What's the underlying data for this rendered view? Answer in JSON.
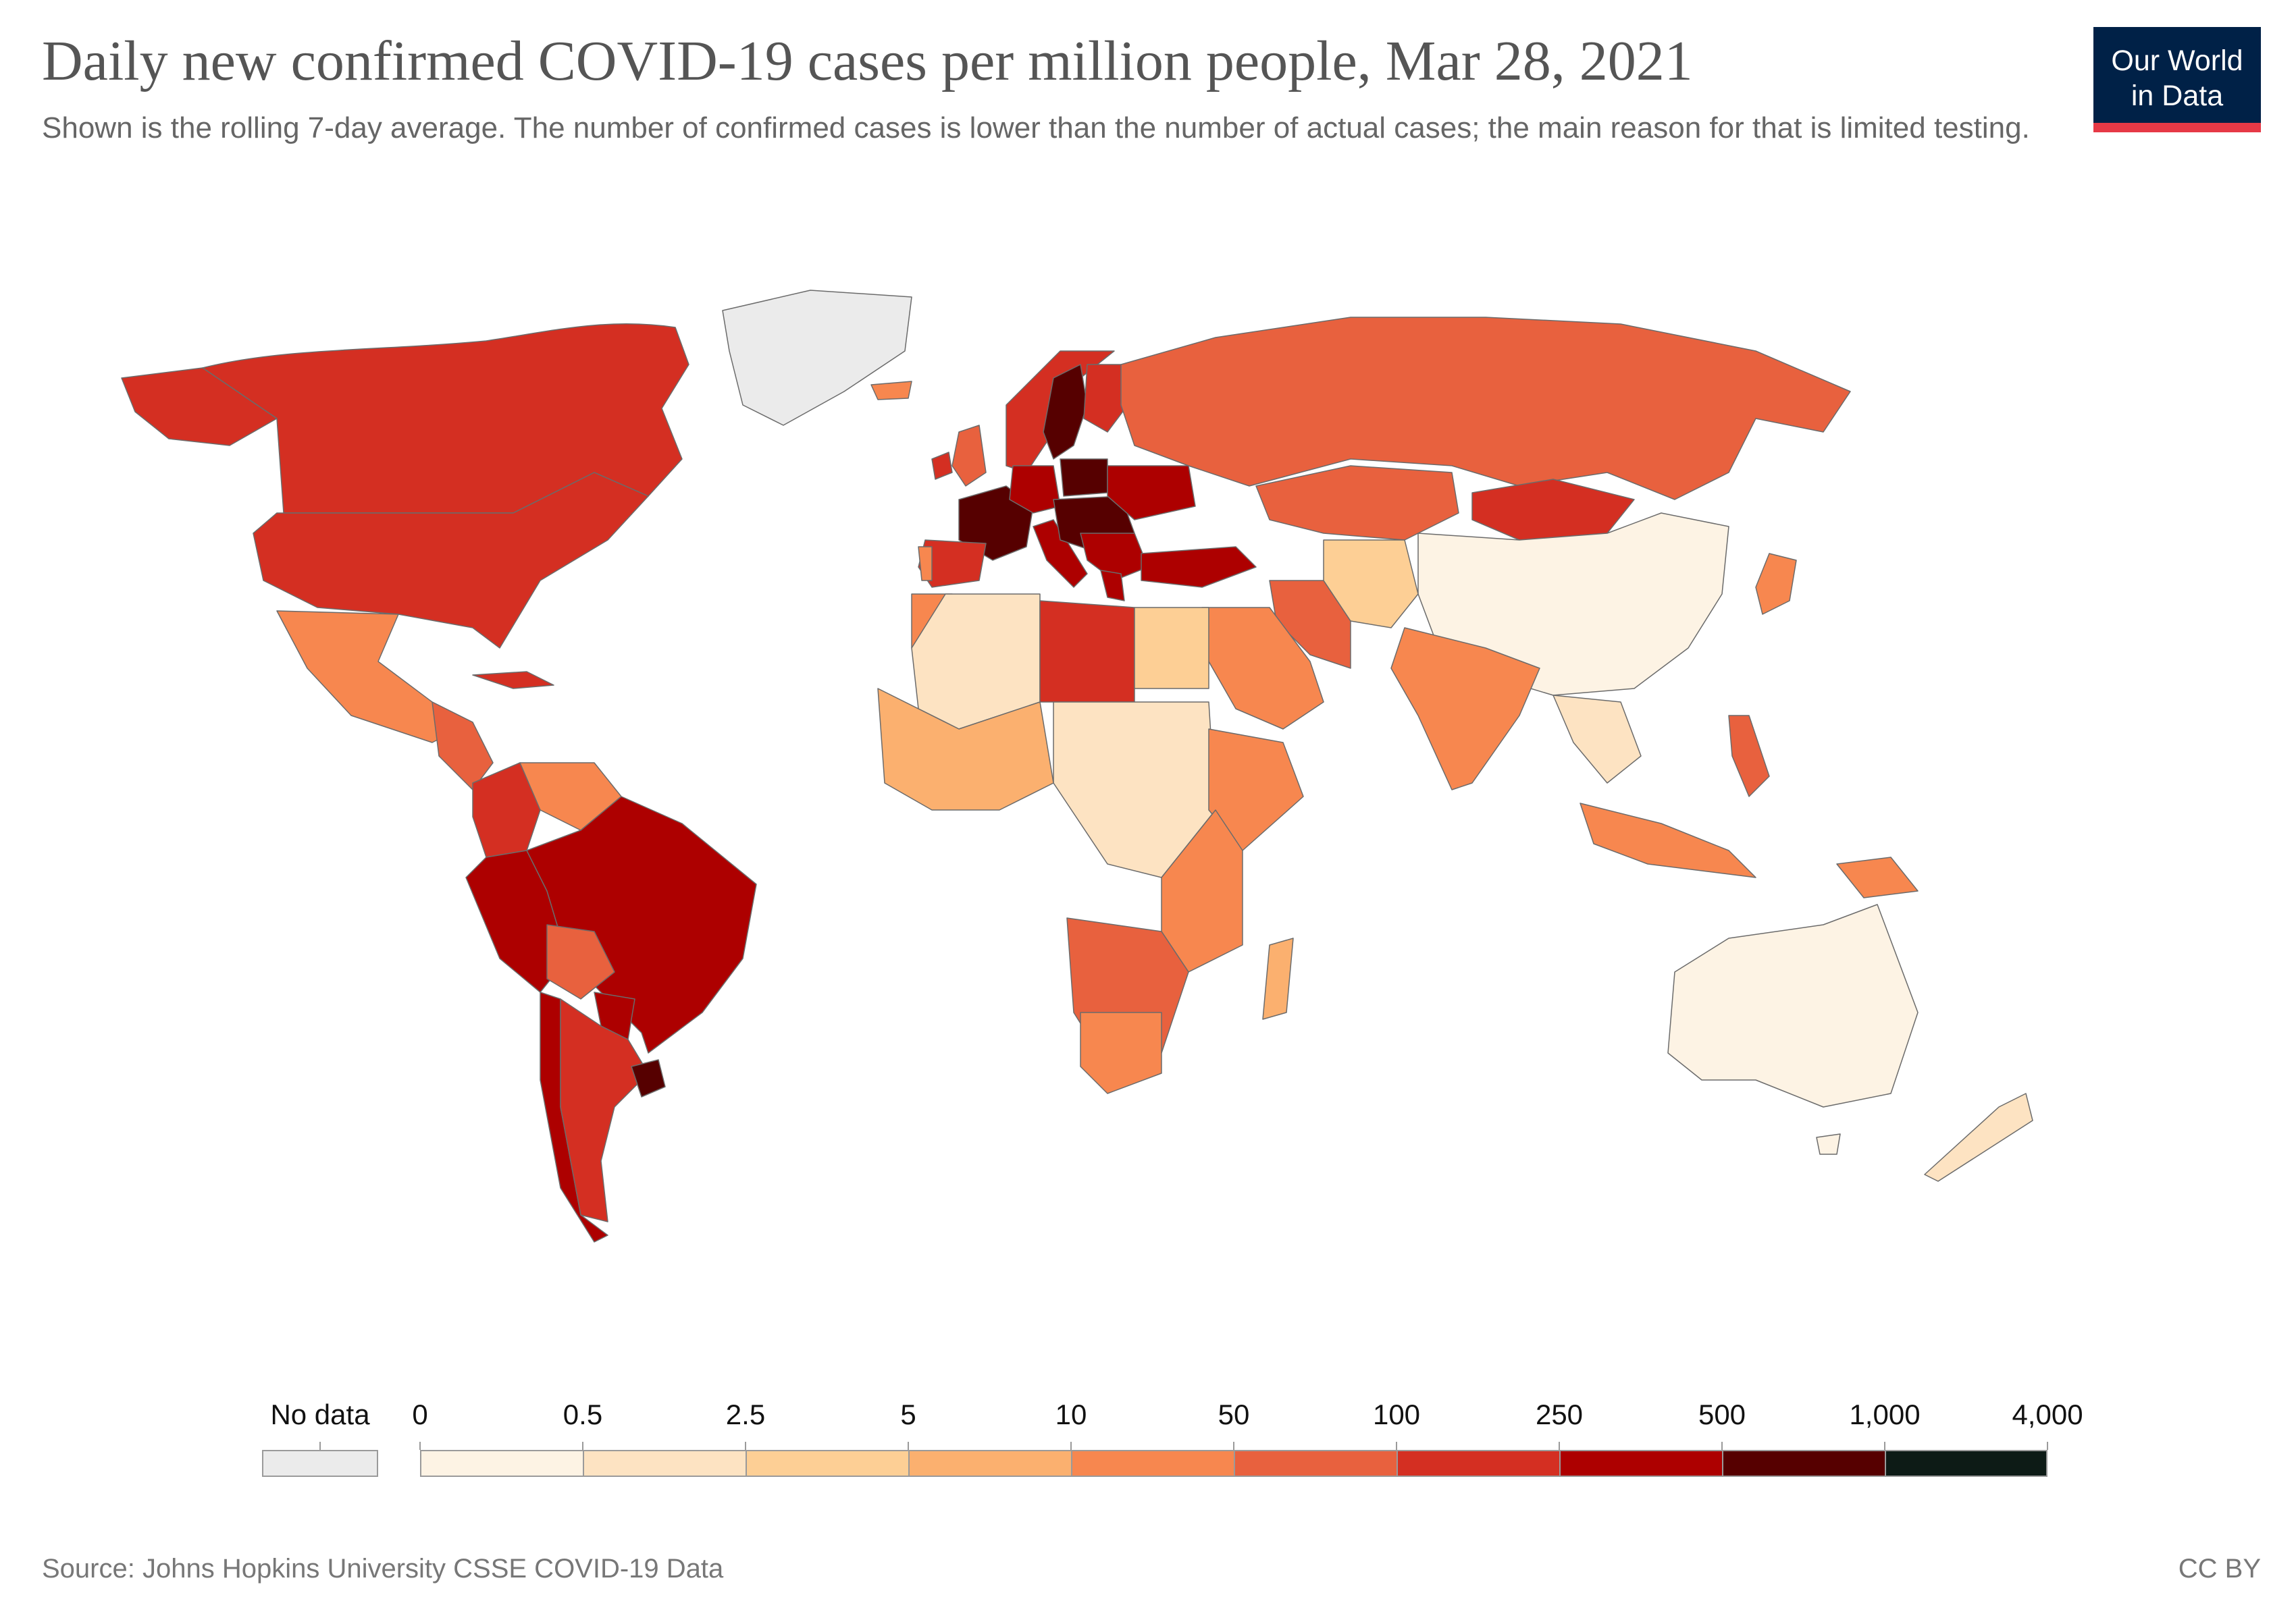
{
  "header": {
    "title": "Daily new confirmed COVID-19 cases per million people, Mar 28, 2021",
    "subtitle": "Shown is the rolling 7-day average. The number of confirmed cases is lower than the number of actual cases; the main reason for that is limited testing.",
    "logo_line1": "Our World",
    "logo_line2": "in Data"
  },
  "legend": {
    "no_data_label": "No data",
    "no_data_color": "#ebebeb",
    "breaks": [
      "0",
      "0.5",
      "2.5",
      "5",
      "10",
      "50",
      "100",
      "250",
      "500",
      "1,000",
      "4,000"
    ],
    "colors": [
      "#fdf3e4",
      "#fde3c2",
      "#fdcf95",
      "#fbb06f",
      "#f7874f",
      "#e8613e",
      "#d42f22",
      "#ad0000",
      "#560000",
      "#0d1b16"
    ]
  },
  "footer": {
    "source": "Source: Johns Hopkins University CSSE COVID-19 Data",
    "license": "CC BY"
  },
  "chart_data": {
    "type": "choropleth",
    "date": "Mar 28, 2021",
    "metric": "Daily new confirmed COVID-19 cases per million people",
    "regions": [
      {
        "name": "Canada",
        "bin": "100-250"
      },
      {
        "name": "United States",
        "bin": "100-250"
      },
      {
        "name": "Mexico",
        "bin": "10-50"
      },
      {
        "name": "Greenland",
        "bin": "no data"
      },
      {
        "name": "Brazil",
        "bin": "250-500"
      },
      {
        "name": "Peru",
        "bin": "250-500"
      },
      {
        "name": "Colombia",
        "bin": "100-250"
      },
      {
        "name": "Venezuela",
        "bin": "10-50"
      },
      {
        "name": "Bolivia",
        "bin": "50-100"
      },
      {
        "name": "Argentina",
        "bin": "100-250"
      },
      {
        "name": "Chile",
        "bin": "250-500"
      },
      {
        "name": "Uruguay",
        "bin": "500-1,000"
      },
      {
        "name": "France",
        "bin": "500-1,000"
      },
      {
        "name": "Sweden",
        "bin": "500-1,000"
      },
      {
        "name": "Poland",
        "bin": "500-1,000"
      },
      {
        "name": "United Kingdom",
        "bin": "50-100"
      },
      {
        "name": "Spain",
        "bin": "100-250"
      },
      {
        "name": "Turkey",
        "bin": "250-500"
      },
      {
        "name": "Russia",
        "bin": "50-100"
      },
      {
        "name": "Kazakhstan",
        "bin": "50-100"
      },
      {
        "name": "Mongolia",
        "bin": "100-250"
      },
      {
        "name": "China",
        "bin": "0-0.5"
      },
      {
        "name": "Iran",
        "bin": "50-100"
      },
      {
        "name": "India",
        "bin": "10-50"
      },
      {
        "name": "Japan",
        "bin": "10-50"
      },
      {
        "name": "Philippines",
        "bin": "50-100"
      },
      {
        "name": "Indonesia",
        "bin": "10-50"
      },
      {
        "name": "Australia",
        "bin": "0-0.5"
      },
      {
        "name": "New Zealand",
        "bin": "0.5-2.5"
      },
      {
        "name": "Libya",
        "bin": "100-250"
      },
      {
        "name": "Algeria",
        "bin": "0.5-2.5"
      },
      {
        "name": "Egypt",
        "bin": "2.5-5"
      },
      {
        "name": "Ethiopia",
        "bin": "10-50"
      },
      {
        "name": "DR Congo",
        "bin": "0.5-2.5"
      },
      {
        "name": "Namibia",
        "bin": "50-100"
      },
      {
        "name": "Botswana",
        "bin": "100-250"
      },
      {
        "name": "South Africa",
        "bin": "10-50"
      },
      {
        "name": "Madagascar",
        "bin": "5-10"
      }
    ]
  }
}
